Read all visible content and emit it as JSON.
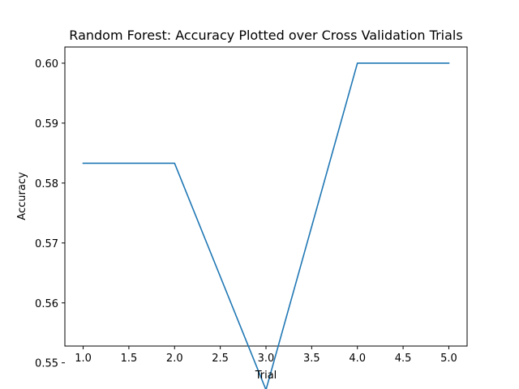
{
  "chart_data": {
    "type": "line",
    "title": "Random Forest: Accuracy Plotted over Cross Validation Trials",
    "xlabel": "Trial",
    "ylabel": "Accuracy",
    "x": [
      1.0,
      2.0,
      3.0,
      4.0,
      5.0
    ],
    "series": [
      {
        "values": [
          0.5833,
          0.5833,
          0.5455,
          0.6,
          0.6
        ],
        "color": "#1f77b4"
      }
    ],
    "xlim": [
      0.8,
      5.2
    ],
    "ylim": [
      0.5528,
      0.6027
    ],
    "xticks": [
      1.0,
      1.5,
      2.0,
      2.5,
      3.0,
      3.5,
      4.0,
      4.5,
      5.0
    ],
    "xtick_labels": [
      "1.0",
      "1.5",
      "2.0",
      "2.5",
      "3.0",
      "3.5",
      "4.0",
      "4.5",
      "5.0"
    ],
    "yticks": [
      0.55,
      0.56,
      0.57,
      0.58,
      0.59,
      0.6
    ],
    "ytick_labels": [
      "0.55",
      "0.56",
      "0.57",
      "0.58",
      "0.59",
      "0.60"
    ],
    "grid": false,
    "legend": "none"
  }
}
